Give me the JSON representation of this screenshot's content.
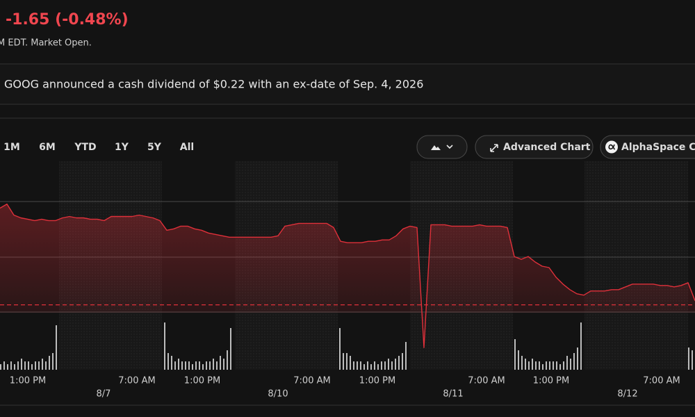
{
  "header": {
    "change": "-1.65 (-0.48%)",
    "status": "M EDT. Market Open."
  },
  "banner": {
    "text": "GOOG announced a cash dividend of $0.22 with an ex-date of Sep. 4, 2026"
  },
  "ranges": [
    "1M",
    "6M",
    "YTD",
    "1Y",
    "5Y",
    "All"
  ],
  "buttons": {
    "advanced": "Advanced Chart",
    "alphaspace": "AlphaSpace Ch"
  },
  "chart": {
    "type": "line",
    "color": "#e0303a",
    "ylim": [
      338.9,
      353.9
    ],
    "previous_close": 343.5,
    "price": [
      350.5,
      350.8,
      350.0,
      349.8,
      349.7,
      349.6,
      349.7,
      349.6,
      349.6,
      349.8,
      349.9,
      349.8,
      349.8,
      349.7,
      349.7,
      349.6,
      349.9,
      349.9,
      349.9,
      349.9,
      350.0,
      349.9,
      349.8,
      349.6,
      348.9,
      349.0,
      349.2,
      349.2,
      349.0,
      348.9,
      348.7,
      348.6,
      348.5,
      348.4,
      348.4,
      348.4,
      348.4,
      348.4,
      348.4,
      348.4,
      348.5,
      349.2,
      349.3,
      349.4,
      349.4,
      349.4,
      349.4,
      349.4,
      349.1,
      348.1,
      348.0,
      348.0,
      348.0,
      348.1,
      348.1,
      348.2,
      348.2,
      348.5,
      349.0,
      349.2,
      349.1,
      340.4,
      349.3,
      349.3,
      349.3,
      349.2,
      349.2,
      349.2,
      349.2,
      349.3,
      349.2,
      349.2,
      349.2,
      349.1,
      347.0,
      346.8,
      347.0,
      346.6,
      346.3,
      346.2,
      345.5,
      345.0,
      344.6,
      344.3,
      344.2,
      344.5,
      344.5,
      344.5,
      344.6,
      344.6,
      344.8,
      345.0,
      345.0,
      345.0,
      345.0,
      344.9,
      344.9,
      344.8,
      344.9,
      345.1,
      343.8
    ],
    "volume": [
      [
        0.5,
        0.3,
        0.4,
        0.2,
        0.3,
        0.2,
        0.3,
        0.2,
        0.3,
        0.4,
        0.3,
        0.3,
        0.2,
        0.3,
        0.3,
        0.4,
        0.3,
        0.5,
        0.6,
        1.6
      ],
      [
        1.7,
        0.6,
        0.5,
        0.3,
        0.4,
        0.3,
        0.3,
        0.3,
        0.2,
        0.3,
        0.3,
        0.2,
        0.3,
        0.3,
        0.4,
        0.3,
        0.5,
        0.4,
        0.7,
        1.5
      ],
      [
        1.5,
        0.6,
        0.6,
        0.5,
        0.3,
        0.3,
        0.3,
        0.2,
        0.3,
        0.2,
        0.3,
        0.2,
        0.3,
        0.3,
        0.4,
        0.3,
        0.4,
        0.5,
        0.6,
        1.0
      ],
      [
        1.1,
        0.7,
        0.5,
        0.4,
        0.3,
        0.4,
        0.3,
        0.3,
        0.2,
        0.3,
        0.3,
        0.3,
        0.3,
        0.2,
        0.3,
        0.5,
        0.4,
        0.6,
        0.8,
        1.7
      ],
      [
        0.8,
        0.7
      ]
    ],
    "time_labels": [
      "1:00 PM",
      "7:00 AM",
      "1:00 PM",
      "7:00 AM",
      "1:00 PM",
      "7:00 AM",
      "1:00 PM",
      "7:00 AM"
    ],
    "date_labels": [
      "8/7",
      "8/10",
      "8/11",
      "8/12"
    ]
  }
}
